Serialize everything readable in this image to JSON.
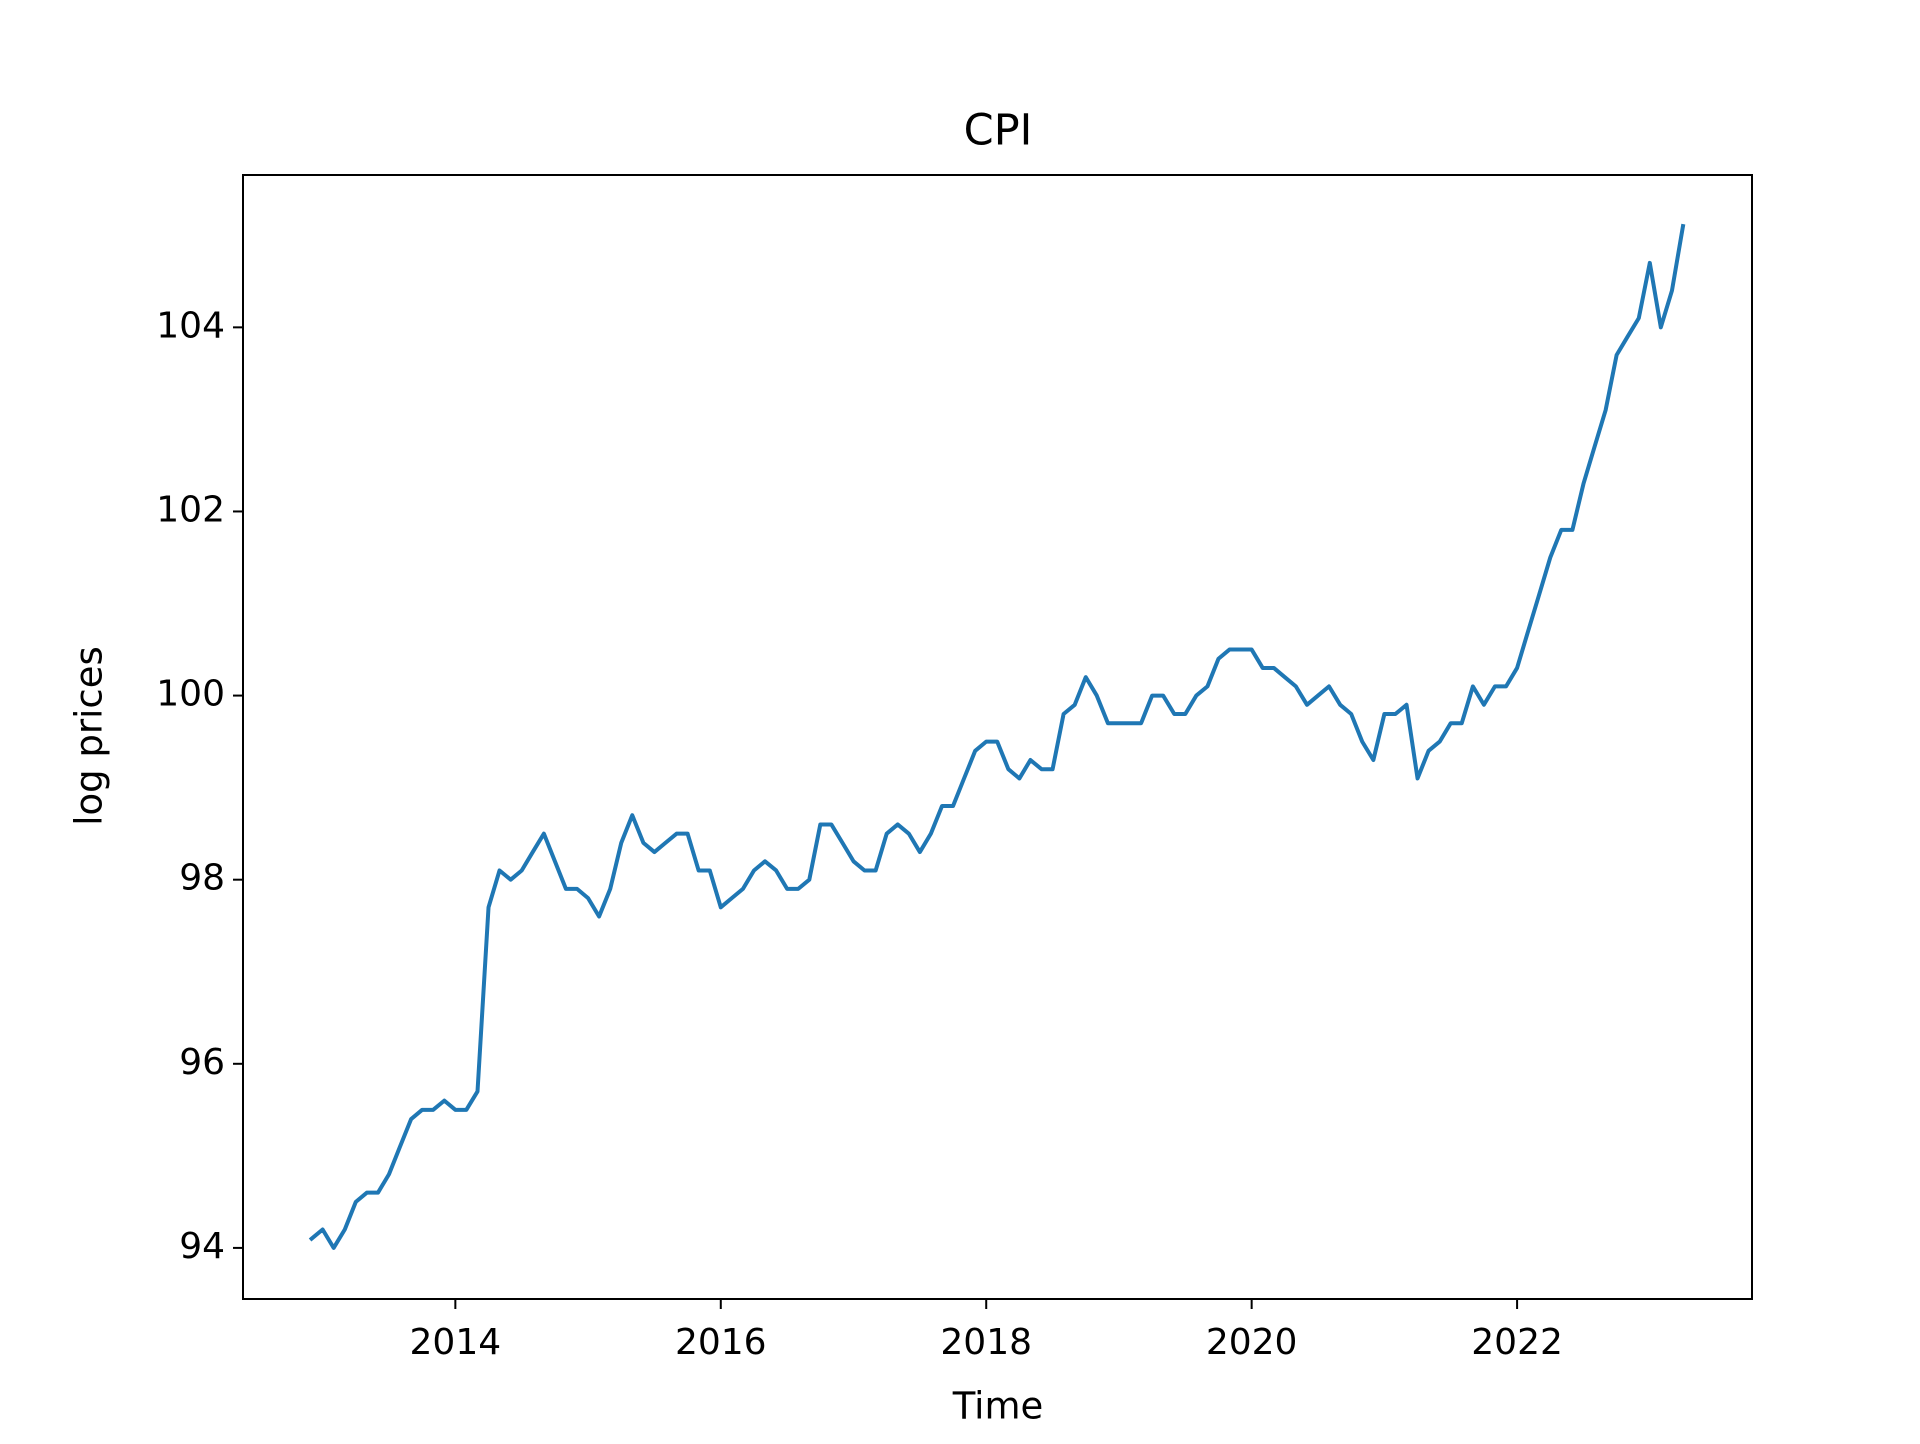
{
  "chart_data": {
    "type": "line",
    "title": "CPI",
    "x_label": "Time",
    "y_label": "log prices",
    "x": [
      2012.917,
      2013,
      2013.083,
      2013.167,
      2013.25,
      2013.333,
      2013.417,
      2013.5,
      2013.583,
      2013.667,
      2013.75,
      2013.833,
      2013.917,
      2014,
      2014.083,
      2014.167,
      2014.25,
      2014.333,
      2014.417,
      2014.5,
      2014.583,
      2014.667,
      2014.75,
      2014.833,
      2014.917,
      2015,
      2015.083,
      2015.167,
      2015.25,
      2015.333,
      2015.417,
      2015.5,
      2015.583,
      2015.667,
      2015.75,
      2015.833,
      2015.917,
      2016,
      2016.083,
      2016.167,
      2016.25,
      2016.333,
      2016.417,
      2016.5,
      2016.583,
      2016.667,
      2016.75,
      2016.833,
      2016.917,
      2017,
      2017.083,
      2017.167,
      2017.25,
      2017.333,
      2017.417,
      2017.5,
      2017.583,
      2017.667,
      2017.75,
      2017.833,
      2017.917,
      2018,
      2018.083,
      2018.167,
      2018.25,
      2018.333,
      2018.417,
      2018.5,
      2018.583,
      2018.667,
      2018.75,
      2018.833,
      2018.917,
      2019,
      2019.083,
      2019.167,
      2019.25,
      2019.333,
      2019.417,
      2019.5,
      2019.583,
      2019.667,
      2019.75,
      2019.833,
      2019.917,
      2020,
      2020.083,
      2020.167,
      2020.25,
      2020.333,
      2020.417,
      2020.5,
      2020.583,
      2020.667,
      2020.75,
      2020.833,
      2020.917,
      2021,
      2021.083,
      2021.167,
      2021.25,
      2021.333,
      2021.417,
      2021.5,
      2021.583,
      2021.667,
      2021.75,
      2021.833,
      2021.917,
      2022,
      2022.083,
      2022.167,
      2022.25,
      2022.333,
      2022.417,
      2022.5,
      2022.583,
      2022.667,
      2022.75,
      2022.833,
      2022.917,
      2023,
      2023.083,
      2023.167,
      2023.25
    ],
    "series": [
      {
        "name": "CPI",
        "color": "#1f77b4",
        "values": [
          94.1,
          94.2,
          94.0,
          94.2,
          94.5,
          94.6,
          94.6,
          94.8,
          95.1,
          95.4,
          95.5,
          95.5,
          95.6,
          95.5,
          95.5,
          95.7,
          97.7,
          98.1,
          98.0,
          98.1,
          98.3,
          98.5,
          98.2,
          97.9,
          97.9,
          97.8,
          97.6,
          97.9,
          98.4,
          98.7,
          98.4,
          98.3,
          98.4,
          98.5,
          98.5,
          98.1,
          98.1,
          97.7,
          97.8,
          97.9,
          98.1,
          98.2,
          98.1,
          97.9,
          97.9,
          98.0,
          98.6,
          98.6,
          98.4,
          98.2,
          98.1,
          98.1,
          98.5,
          98.6,
          98.5,
          98.3,
          98.5,
          98.8,
          98.8,
          99.1,
          99.4,
          99.5,
          99.5,
          99.2,
          99.1,
          99.3,
          99.2,
          99.2,
          99.8,
          99.9,
          100.2,
          100.0,
          99.7,
          99.7,
          99.7,
          99.7,
          100.0,
          100.0,
          99.8,
          99.8,
          100.0,
          100.1,
          100.4,
          100.5,
          100.5,
          100.5,
          100.3,
          100.3,
          100.2,
          100.1,
          99.9,
          100.0,
          100.1,
          99.9,
          99.8,
          99.5,
          99.3,
          99.8,
          99.8,
          99.9,
          99.1,
          99.4,
          99.5,
          99.7,
          99.7,
          100.1,
          99.9,
          100.1,
          100.1,
          100.3,
          100.7,
          101.1,
          101.5,
          101.8,
          101.8,
          102.3,
          102.7,
          103.1,
          103.7,
          103.9,
          104.1,
          104.7,
          104.0,
          104.4,
          105.1
        ]
      }
    ],
    "xlim": [
      2012.4,
      2023.77
    ],
    "xticks": [
      2014,
      2016,
      2018,
      2020,
      2022
    ],
    "ylim": [
      93.445,
      105.655
    ],
    "yticks": [
      94,
      96,
      98,
      100,
      102,
      104
    ],
    "grid": false,
    "legend": false
  }
}
